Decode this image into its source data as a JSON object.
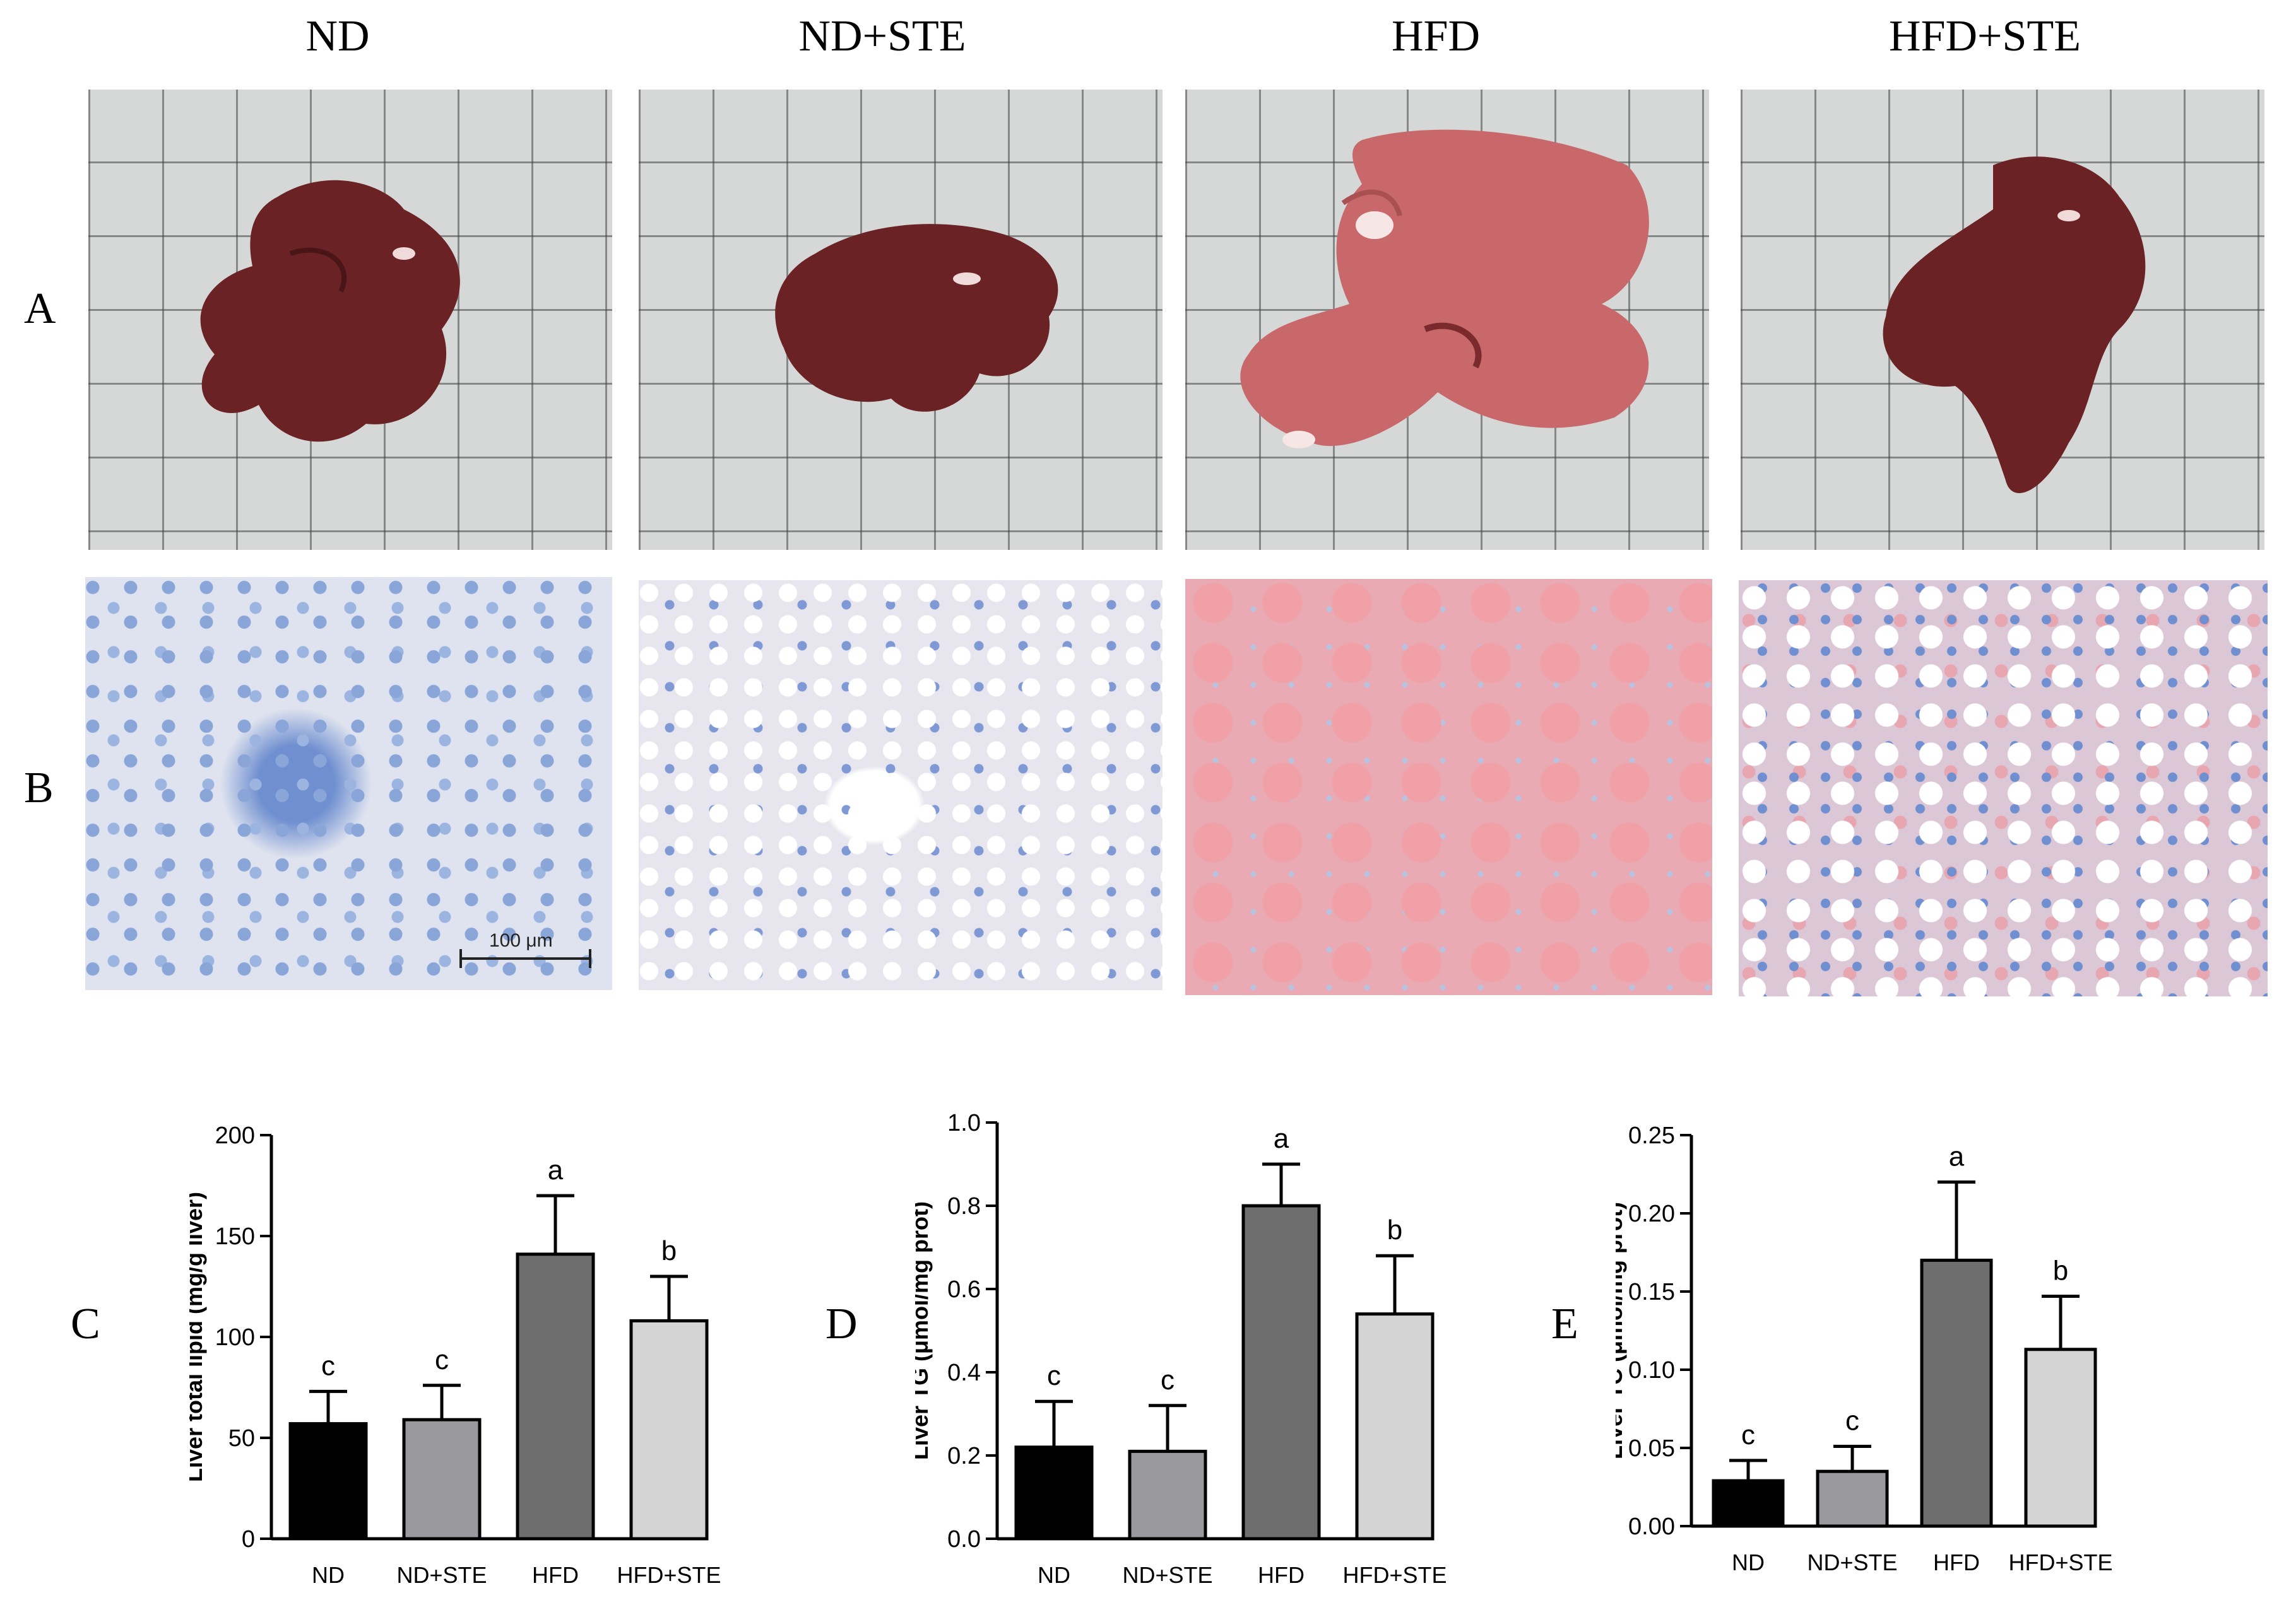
{
  "figure": {
    "column_titles": [
      "ND",
      "ND+STE",
      "HFD",
      "HFD+STE"
    ],
    "row_labels": [
      "A",
      "B"
    ],
    "scale_bar": "100 μm",
    "colors": {
      "liver_normal": "#6b2224",
      "liver_hfd": "#c9686a",
      "grid_paper": "#d5d8d7"
    }
  },
  "chart_data": [
    {
      "panel": "C",
      "type": "bar",
      "categories": [
        "ND",
        "ND+STE",
        "HFD",
        "HFD+STE"
      ],
      "values": [
        57,
        59,
        141,
        108
      ],
      "errors": [
        16,
        17,
        29,
        22
      ],
      "letters": [
        "c",
        "c",
        "a",
        "b"
      ],
      "ylabel": "Liver total lipid (mg/g liver)",
      "ylim": [
        0,
        200
      ],
      "yticks": [
        "0",
        "50",
        "100",
        "150",
        "200"
      ],
      "colors": [
        "#000000",
        "#9a9a9e",
        "#6e6e6e",
        "#d4d4d4"
      ]
    },
    {
      "panel": "D",
      "type": "bar",
      "categories": [
        "ND",
        "ND+STE",
        "HFD",
        "HFD+STE"
      ],
      "values": [
        0.22,
        0.21,
        0.8,
        0.54
      ],
      "errors": [
        0.11,
        0.11,
        0.1,
        0.14
      ],
      "letters": [
        "c",
        "c",
        "a",
        "b"
      ],
      "ylabel": "Liver TG (μmol/mg prot)",
      "ylim": [
        0,
        1.0
      ],
      "yticks": [
        "0.0",
        "0.2",
        "0.4",
        "0.6",
        "0.8",
        "1.0"
      ],
      "colors": [
        "#000000",
        "#9a9a9e",
        "#6e6e6e",
        "#d4d4d4"
      ]
    },
    {
      "panel": "E",
      "type": "bar",
      "categories": [
        "ND",
        "ND+STE",
        "HFD",
        "HFD+STE"
      ],
      "values": [
        0.029,
        0.035,
        0.17,
        0.113
      ],
      "errors": [
        0.013,
        0.016,
        0.05,
        0.034
      ],
      "letters": [
        "c",
        "c",
        "a",
        "b"
      ],
      "ylabel": "Liver TC (μmol/mg prot)",
      "ylim": [
        0,
        0.25
      ],
      "yticks": [
        "0.00",
        "0.05",
        "0.10",
        "0.15",
        "0.20",
        "0.25"
      ],
      "colors": [
        "#000000",
        "#9a9a9e",
        "#6e6e6e",
        "#d4d4d4"
      ]
    }
  ]
}
